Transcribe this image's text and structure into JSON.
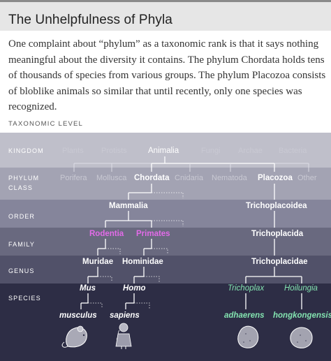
{
  "title": "The Unhelpfulness of Phyla",
  "intro": "One complaint about “phylum” as a taxonomic rank is that it says nothing meaningful about the diversity it contains. The phylum Chordata holds tens of thousands of species from various groups. The phylum Placozoa consists of bloblike animals so similar that until recently, only one species was recognized.",
  "level_label": "TAXONOMIC LEVEL",
  "ranks": {
    "kingdom": "KINGDOM",
    "phylum": "PHYLUM",
    "class": "CLASS",
    "order": "ORDER",
    "family": "FAMILY",
    "genus": "GENUS",
    "species": "SPECIES"
  },
  "kingdoms": {
    "plants": "Plants",
    "protists": "Protists",
    "animalia": "Animalia",
    "fungi": "Fungi",
    "archae": "Archae",
    "bacteria": "Bacteria"
  },
  "phyla": {
    "porifera": "Porifera",
    "mollusca": "Mollusca",
    "chordata": "Chordata",
    "cnidaria": "Cnidaria",
    "nematoda": "Nematoda",
    "placozoa": "Placozoa",
    "other": "Other"
  },
  "chordata_branch": {
    "class": "Mammalia",
    "order_rodentia": "Rodentia",
    "order_primates": "Primates",
    "family_muridae": "Muridae",
    "family_hominidae": "Hominidae",
    "genus_mus": "Mus",
    "genus_homo": "Homo",
    "species_musculus": "musculus",
    "species_sapiens": "sapiens"
  },
  "placozoa_branch": {
    "class": "Trichoplacoidea",
    "order": "Trichoplacida",
    "family": "Trichoplacidae",
    "genus_trichoplax": "Trichoplax",
    "genus_hoilungia": "Hoilungia",
    "species_adhaerens": "adhaerens",
    "species_hongkongensis": "hongkongensis"
  },
  "colors": {
    "band_top": "#bdbdc8",
    "band_bottom": "#2c2c44",
    "pink": "#e26be8",
    "green": "#83e3b0"
  },
  "icons": [
    "mouse-icon",
    "human-icon",
    "placozoan-icon",
    "placozoan-icon"
  ]
}
